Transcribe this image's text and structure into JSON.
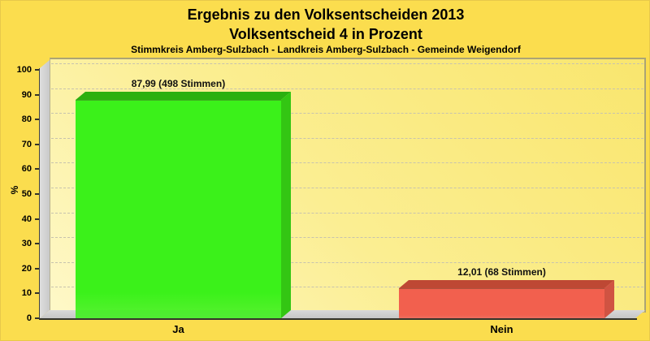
{
  "title": {
    "line1": "Ergebnis zu den Volksentscheiden 2013",
    "line2": "Volksentscheid 4 in Prozent",
    "subtitle": "Stimmkreis Amberg-Sulzbach - Landkreis Amberg-Sulzbach - Gemeinde Weigendorf"
  },
  "chart_data": {
    "type": "bar",
    "style": "3d-column",
    "title": "Ergebnis zu den Volksentscheiden 2013 - Volksentscheid 4 in Prozent",
    "subtitle": "Stimmkreis Amberg-Sulzbach - Landkreis Amberg-Sulzbach - Gemeinde Weigendorf",
    "xlabel": "",
    "ylabel": "%",
    "ylim": [
      0,
      100
    ],
    "ytick_step": 10,
    "grid": "horizontal-dashed",
    "legend": "none",
    "categories": [
      "Ja",
      "Nein"
    ],
    "values": [
      87.99,
      12.01
    ],
    "votes": [
      498,
      68
    ],
    "bar_labels": [
      "87,99 (498 Stimmen)",
      "12,01 (68 Stimmen)"
    ],
    "bars": [
      {
        "category": "Ja",
        "value": 87.99,
        "label": "87,99 (498 Stimmen)",
        "front": "#3bf11a",
        "top": "#2bb00f",
        "side": "#33c613"
      },
      {
        "category": "Nein",
        "value": 12.01,
        "label": "12,01 (68 Stimmen)",
        "front": "#f2604e",
        "top": "#be4834",
        "side": "#d05342"
      }
    ],
    "colors": {
      "background": "#fbdd4e",
      "plot_gradient_start": "#fef8c8",
      "plot_gradient_end": "#f9e66e",
      "gridline": "#c7c3ae",
      "wall": "#d4d4d4",
      "axis": "#33332b",
      "text": "#000000"
    }
  }
}
